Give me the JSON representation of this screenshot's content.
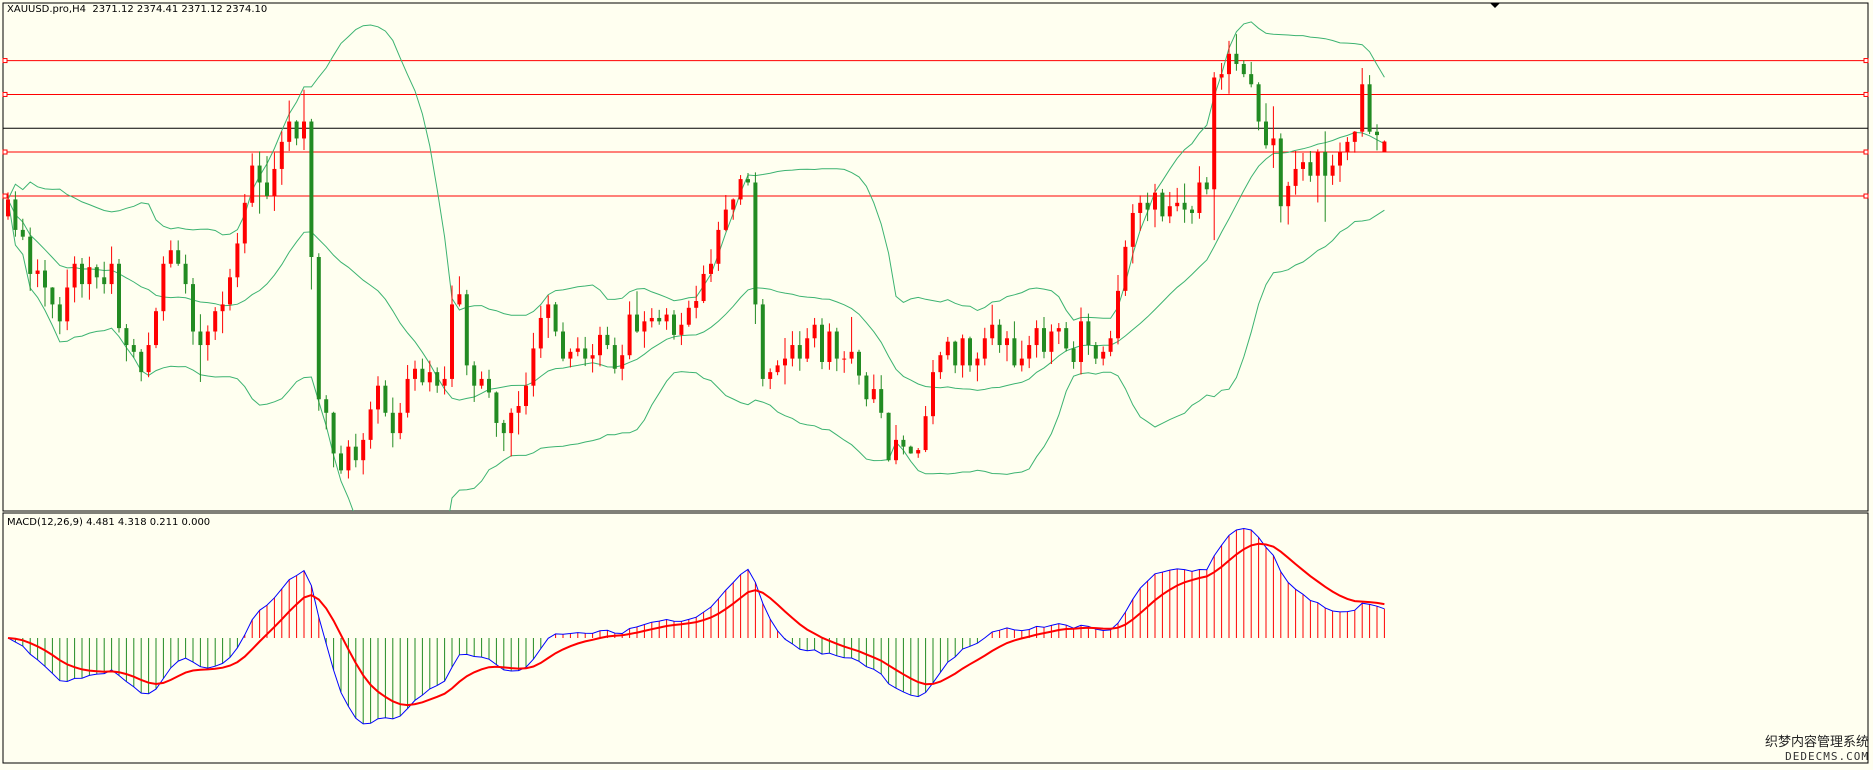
{
  "title": "XAUUSD.pro,H4  2371.12 2374.41 2371.12 2374.10",
  "macd_title": "MACD(12,26,9) 4.481 4.318 0.211 0.000",
  "watermark": {
    "line1": "织梦内容管理系统",
    "line2": "DEDECMS.COM"
  },
  "colors": {
    "background": "#fffff0",
    "bull": "#ff0000",
    "bear": "#228b22",
    "bands": "#3cb371",
    "level_lines": "#ff0000",
    "current_price_line": "#000000",
    "macd_line": "#0000ff",
    "signal_line": "#ff0000"
  },
  "chart_data": [
    {
      "type": "candlestick",
      "symbol": "XAUUSD.pro",
      "timeframe": "H4",
      "ohlc_last": {
        "open": 2371.12,
        "high": 2374.41,
        "low": 2371.12,
        "close": 2374.1
      },
      "indicators": [
        "Bollinger Bands"
      ],
      "horizontal_levels": [
        2398,
        2388,
        2371,
        2358
      ],
      "current_price": 2378,
      "ylim": [
        2265,
        2415
      ],
      "candles": [
        [
          2352.0,
          2359.1,
          2351.0,
          2357.0
        ],
        [
          2357.0,
          2359.4,
          2346.0,
          2348.0
        ],
        [
          2348.0,
          2351.3,
          2345.0,
          2346.0
        ],
        [
          2346.0,
          2348.7,
          2330.0,
          2335.0
        ],
        [
          2335.0,
          2339.3,
          2331.1,
          2336.0
        ],
        [
          2336.0,
          2339.1,
          2325.4,
          2331.0
        ],
        [
          2331.0,
          2331.1,
          2321.9,
          2326.0
        ],
        [
          2326.0,
          2328.2,
          2317.2,
          2321.0
        ],
        [
          2321.0,
          2336.3,
          2318.4,
          2331.0
        ],
        [
          2331.0,
          2340.2,
          2326.6,
          2338.0
        ],
        [
          2338.0,
          2339.7,
          2328.0,
          2332.0
        ],
        [
          2332.0,
          2340.1,
          2327.4,
          2337.0
        ],
        [
          2337.0,
          2337.8,
          2330.7,
          2334.0
        ],
        [
          2334.0,
          2338.6,
          2329.2,
          2332.0
        ],
        [
          2332.0,
          2343.1,
          2329.1,
          2338.0
        ],
        [
          2338.0,
          2339.4,
          2317.7,
          2319.0
        ],
        [
          2319.0,
          2320.2,
          2309.2,
          2314.0
        ],
        [
          2314.0,
          2315.8,
          2310.3,
          2312.0
        ],
        [
          2312.0,
          2312.8,
          2303.3,
          2306.0
        ],
        [
          2306.0,
          2317.7,
          2304.5,
          2314.0
        ],
        [
          2314.0,
          2325.0,
          2313.1,
          2324.0
        ],
        [
          2324.0,
          2340.2,
          2321.2,
          2338.0
        ],
        [
          2338.0,
          2344.9,
          2336.9,
          2342.0
        ],
        [
          2342.0,
          2344.9,
          2337.4,
          2338.0
        ],
        [
          2338.0,
          2340.7,
          2329.2,
          2332.0
        ],
        [
          2332.0,
          2333.8,
          2314.1,
          2318.0
        ],
        [
          2318.0,
          2323.1,
          2303.1,
          2314.0
        ],
        [
          2314.0,
          2319.8,
          2309.4,
          2318.0
        ],
        [
          2318.0,
          2325.2,
          2315.5,
          2324.0
        ],
        [
          2324.0,
          2329.8,
          2317.5,
          2326.0
        ],
        [
          2326.0,
          2336.5,
          2324.2,
          2334.0
        ],
        [
          2334.0,
          2347.1,
          2331.1,
          2344.0
        ],
        [
          2344.0,
          2358.6,
          2341.1,
          2356.0
        ],
        [
          2356.0,
          2370.6,
          2354.8,
          2367.0
        ],
        [
          2367.0,
          2371.2,
          2352.8,
          2362.0
        ],
        [
          2362.0,
          2369.8,
          2357.1,
          2358.0
        ],
        [
          2358.0,
          2370.8,
          2353.6,
          2366.0
        ],
        [
          2366.0,
          2377.1,
          2361.3,
          2374.0
        ],
        [
          2374.0,
          2386.2,
          2371.3,
          2380.0
        ],
        [
          2380.0,
          2380.4,
          2373.0,
          2375.0
        ],
        [
          2375.0,
          2389.4,
          2371.6,
          2380.0
        ],
        [
          2380.0,
          2380.8,
          2330.4,
          2340.0
        ],
        [
          2340.0,
          2341.1,
          2294.6,
          2298.0
        ],
        [
          2298.0,
          2299.2,
          2289.1,
          2294.0
        ],
        [
          2294.0,
          2294.3,
          2277.9,
          2282.0
        ],
        [
          2282.0,
          2284.3,
          2276.0,
          2277.0
        ],
        [
          2277.0,
          2285.9,
          2274.6,
          2284.0
        ],
        [
          2284.0,
          2287.8,
          2277.9,
          2280.0
        ],
        [
          2280.0,
          2288.0,
          2275.8,
          2286.0
        ],
        [
          2286.0,
          2297.3,
          2283.4,
          2295.0
        ],
        [
          2295.0,
          2304.8,
          2290.8,
          2302.0
        ],
        [
          2302.0,
          2303.6,
          2292.9,
          2294.0
        ],
        [
          2294.0,
          2298.5,
          2283.8,
          2288.0
        ],
        [
          2288.0,
          2296.9,
          2286.2,
          2294.0
        ],
        [
          2294.0,
          2308.1,
          2292.6,
          2304.0
        ],
        [
          2304.0,
          2309.4,
          2300.5,
          2307.0
        ],
        [
          2307.0,
          2310.0,
          2302.1,
          2303.0
        ],
        [
          2303.0,
          2309.4,
          2300.3,
          2306.0
        ],
        [
          2306.0,
          2307.4,
          2299.9,
          2302.0
        ],
        [
          2302.0,
          2307.7,
          2299.4,
          2304.0
        ],
        [
          2304.0,
          2331.6,
          2301.6,
          2326.0
        ],
        [
          2326.0,
          2334.3,
          2325.4,
          2329.0
        ],
        [
          2329.0,
          2330.3,
          2305.1,
          2308.0
        ],
        [
          2308.0,
          2309.2,
          2297.2,
          2302.0
        ],
        [
          2302.0,
          2306.2,
          2301.1,
          2304.0
        ],
        [
          2304.0,
          2306.7,
          2298.4,
          2300.0
        ],
        [
          2300.0,
          2300.3,
          2286.9,
          2291.0
        ],
        [
          2291.0,
          2291.9,
          2282.7,
          2288.0
        ],
        [
          2288.0,
          2295.3,
          2281.1,
          2294.0
        ],
        [
          2294.0,
          2300.4,
          2287.6,
          2296.0
        ],
        [
          2296.0,
          2305.9,
          2293.5,
          2302.0
        ],
        [
          2302.0,
          2317.6,
          2298.8,
          2313.0
        ],
        [
          2313.0,
          2325.6,
          2310.2,
          2322.0
        ],
        [
          2322.0,
          2328.7,
          2316.1,
          2326.0
        ],
        [
          2326.0,
          2326.7,
          2316.6,
          2318.0
        ],
        [
          2318.0,
          2320.7,
          2309.2,
          2310.0
        ],
        [
          2310.0,
          2313.0,
          2307.4,
          2312.0
        ],
        [
          2312.0,
          2316.3,
          2310.7,
          2313.0
        ],
        [
          2313.0,
          2316.4,
          2307.8,
          2310.0
        ],
        [
          2310.0,
          2314.3,
          2305.9,
          2311.0
        ],
        [
          2311.0,
          2319.4,
          2307.7,
          2317.0
        ],
        [
          2317.0,
          2319.4,
          2312.8,
          2314.0
        ],
        [
          2314.0,
          2316.2,
          2305.6,
          2307.0
        ],
        [
          2307.0,
          2314.1,
          2303.6,
          2311.0
        ],
        [
          2311.0,
          2326.9,
          2309.8,
          2323.0
        ],
        [
          2323.0,
          2329.9,
          2317.6,
          2318.0
        ],
        [
          2318.0,
          2324.0,
          2313.2,
          2321.0
        ],
        [
          2321.0,
          2324.9,
          2319.2,
          2322.0
        ],
        [
          2322.0,
          2324.4,
          2320.0,
          2321.0
        ],
        [
          2321.0,
          2324.9,
          2318.5,
          2323.0
        ],
        [
          2323.0,
          2324.3,
          2315.6,
          2317.0
        ],
        [
          2317.0,
          2323.5,
          2314.0,
          2320.0
        ],
        [
          2320.0,
          2327.1,
          2319.4,
          2325.0
        ],
        [
          2325.0,
          2331.5,
          2321.9,
          2327.0
        ],
        [
          2327.0,
          2337.5,
          2326.4,
          2335.0
        ],
        [
          2335.0,
          2342.3,
          2332.6,
          2338.0
        ],
        [
          2338.0,
          2350.4,
          2335.9,
          2348.0
        ],
        [
          2348.0,
          2358.3,
          2347.6,
          2354.0
        ],
        [
          2354.0,
          2357.3,
          2351.0,
          2357.0
        ],
        [
          2357.0,
          2364.2,
          2355.4,
          2363.0
        ],
        [
          2363.0,
          2364.8,
          2361.1,
          2362.0
        ],
        [
          2362.0,
          2365.0,
          2320.2,
          2326.0
        ],
        [
          2326.0,
          2327.6,
          2301.8,
          2304.0
        ],
        [
          2304.0,
          2307.1,
          2301.0,
          2306.0
        ],
        [
          2306.0,
          2309.5,
          2305.1,
          2308.0
        ],
        [
          2308.0,
          2316.1,
          2302.4,
          2310.0
        ],
        [
          2310.0,
          2318.1,
          2307.7,
          2314.0
        ],
        [
          2314.0,
          2318.1,
          2306.4,
          2310.0
        ],
        [
          2310.0,
          2319.0,
          2309.0,
          2316.0
        ],
        [
          2316.0,
          2322.0,
          2313.3,
          2320.0
        ],
        [
          2320.0,
          2321.9,
          2306.9,
          2309.0
        ],
        [
          2309.0,
          2320.4,
          2306.7,
          2318.0
        ],
        [
          2318.0,
          2319.1,
          2306.3,
          2310.0
        ],
        [
          2310.0,
          2312.2,
          2305.8,
          2310.0
        ],
        [
          2310.0,
          2322.3,
          2308.5,
          2312.0
        ],
        [
          2312.0,
          2312.6,
          2302.3,
          2305.0
        ],
        [
          2305.0,
          2306.0,
          2295.9,
          2298.0
        ],
        [
          2298.0,
          2305.3,
          2296.9,
          2301.0
        ],
        [
          2301.0,
          2305.1,
          2292.4,
          2294.0
        ],
        [
          2294.0,
          2294.1,
          2279.6,
          2280.0
        ],
        [
          2280.0,
          2290.4,
          2278.8,
          2286.0
        ],
        [
          2286.0,
          2287.3,
          2281.7,
          2284.0
        ],
        [
          2284.0,
          2284.3,
          2281.9,
          2282.0
        ],
        [
          2282.0,
          2283.6,
          2280.7,
          2283.0
        ],
        [
          2283.0,
          2296.0,
          2282.4,
          2293.0
        ],
        [
          2293.0,
          2309.6,
          2290.6,
          2306.0
        ],
        [
          2306.0,
          2312.0,
          2304.0,
          2311.0
        ],
        [
          2311.0,
          2316.4,
          2309.7,
          2315.0
        ],
        [
          2315.0,
          2315.3,
          2305.7,
          2308.0
        ],
        [
          2308.0,
          2317.1,
          2304.4,
          2316.0
        ],
        [
          2316.0,
          2316.5,
          2306.1,
          2308.0
        ],
        [
          2308.0,
          2311.8,
          2303.3,
          2310.0
        ],
        [
          2310.0,
          2319.1,
          2308.0,
          2316.0
        ],
        [
          2316.0,
          2325.9,
          2314.0,
          2320.0
        ],
        [
          2320.0,
          2321.6,
          2311.7,
          2314.0
        ],
        [
          2314.0,
          2318.1,
          2309.2,
          2316.0
        ],
        [
          2316.0,
          2321.0,
          2307.4,
          2308.0
        ],
        [
          2308.0,
          2315.3,
          2306.2,
          2310.0
        ],
        [
          2310.0,
          2316.7,
          2307.2,
          2314.0
        ],
        [
          2314.0,
          2321.3,
          2310.3,
          2319.0
        ],
        [
          2319.0,
          2322.3,
          2310.1,
          2312.0
        ],
        [
          2312.0,
          2320.1,
          2308.4,
          2318.0
        ],
        [
          2318.0,
          2320.5,
          2314.3,
          2319.0
        ],
        [
          2319.0,
          2320.8,
          2312.1,
          2313.0
        ],
        [
          2313.0,
          2315.1,
          2307.0,
          2309.0
        ],
        [
          2309.0,
          2325.1,
          2305.3,
          2321.0
        ],
        [
          2321.0,
          2323.3,
          2311.1,
          2314.0
        ],
        [
          2314.0,
          2314.9,
          2308.4,
          2310.0
        ],
        [
          2310.0,
          2313.6,
          2308.0,
          2312.0
        ],
        [
          2312.0,
          2318.2,
          2310.7,
          2316.0
        ],
        [
          2316.0,
          2334.7,
          2314.2,
          2330.0
        ],
        [
          2330.0,
          2344.9,
          2328.5,
          2343.0
        ],
        [
          2343.0,
          2355.6,
          2338.1,
          2353.0
        ],
        [
          2353.0,
          2358.2,
          2347.7,
          2356.0
        ],
        [
          2356.0,
          2359.0,
          2350.6,
          2354.0
        ],
        [
          2354.0,
          2361.6,
          2348.8,
          2359.0
        ],
        [
          2359.0,
          2360.1,
          2350.5,
          2352.0
        ],
        [
          2352.0,
          2359.2,
          2350.0,
          2355.0
        ],
        [
          2355.0,
          2360.4,
          2353.5,
          2356.0
        ],
        [
          2356.0,
          2361.7,
          2350.1,
          2354.0
        ],
        [
          2354.0,
          2355.1,
          2349.8,
          2353.0
        ],
        [
          2353.0,
          2366.8,
          2351.3,
          2362.0
        ],
        [
          2362.0,
          2363.6,
          2358.5,
          2360.0
        ],
        [
          2360.0,
          2394.6,
          2345.0,
          2393.0
        ],
        [
          2393.0,
          2397.3,
          2389.4,
          2394.0
        ],
        [
          2394.0,
          2403.8,
          2388.2,
          2400.0
        ],
        [
          2400.0,
          2405.8,
          2395.0,
          2397.0
        ],
        [
          2397.0,
          2398.1,
          2393.1,
          2394.0
        ],
        [
          2394.0,
          2397.6,
          2390.1,
          2391.0
        ],
        [
          2391.0,
          2391.6,
          2377.4,
          2380.0
        ],
        [
          2380.0,
          2385.4,
          2372.0,
          2373.0
        ],
        [
          2373.0,
          2384.5,
          2366.3,
          2375.0
        ],
        [
          2375.0,
          2376.5,
          2350.2,
          2355.0
        ],
        [
          2355.0,
          2362.2,
          2349.6,
          2361.0
        ],
        [
          2361.0,
          2371.3,
          2358.4,
          2366.0
        ],
        [
          2366.0,
          2370.7,
          2362.5,
          2368.0
        ],
        [
          2368.0,
          2371.3,
          2362.2,
          2364.0
        ],
        [
          2364.0,
          2371.8,
          2356.1,
          2371.0
        ],
        [
          2371.0,
          2377.1,
          2350.4,
          2364.0
        ],
        [
          2364.0,
          2370.2,
          2361.3,
          2367.0
        ],
        [
          2367.0,
          2373.8,
          2362.2,
          2371.0
        ],
        [
          2371.0,
          2375.4,
          2368.6,
          2374.0
        ],
        [
          2374.0,
          2377.2,
          2370.8,
          2377.0
        ],
        [
          2377.0,
          2395.8,
          2375.5,
          2391.0
        ],
        [
          2391.0,
          2393.7,
          2376.3,
          2377.0
        ],
        [
          2377.0,
          2379.2,
          2371.5,
          2376.0
        ],
        [
          2371.12,
          2374.41,
          2371.12,
          2374.1
        ]
      ]
    },
    {
      "type": "macd",
      "params": "12,26,9",
      "values": {
        "macd": 4.481,
        "signal": 4.318,
        "histogram": 0.211,
        "level": 0.0
      },
      "ylim": [
        -22,
        22
      ]
    }
  ]
}
